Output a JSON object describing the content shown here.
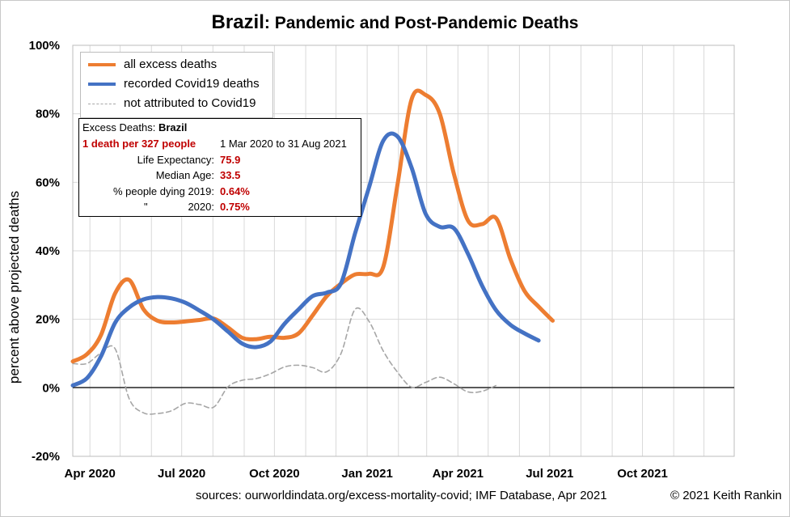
{
  "title_bold": "Brazil",
  "title_rest": ": Pandemic and Post-Pandemic Deaths",
  "footer": {
    "sources": "sources:  ourworldindata.org/excess-mortality-covid;  IMF Database, Apr 2021",
    "copyright": "© 2021 Keith Rankin"
  },
  "legend": {
    "items": [
      {
        "label": "all excess deaths",
        "color": "#ed7d31"
      },
      {
        "label": "recorded Covid19 deaths",
        "color": "#4472c4"
      },
      {
        "label": "not attributed to Covid19",
        "color": "#a6a6a6"
      }
    ]
  },
  "infobox": {
    "heading": "Excess Deaths: ",
    "heading_bold": "Brazil",
    "rate": "1 death per 327 people",
    "period": "1 Mar 2020 to 31 Aug 2021",
    "life_label": "Life Expectancy:",
    "life_value": "75.9",
    "age_label": "Median Age:",
    "age_value": "33.5",
    "dying2019_label": "% people dying 2019:",
    "dying2019_value": "0.64%",
    "ditto_mark": "\"",
    "dying2020_label": "2020:",
    "dying2020_value": "0.75%"
  },
  "chart_data": {
    "type": "line",
    "title": "Brazil: Pandemic and Post-Pandemic Deaths",
    "xlabel": "",
    "ylabel": "percent above projected deaths",
    "x_ticks": [
      "Apr 2020",
      "Jul 2020",
      "Oct 2020",
      "Jan 2021",
      "Apr 2021",
      "Jul 2021",
      "Oct 2021"
    ],
    "x_range": [
      "2020-03-15",
      "2021-12-31"
    ],
    "y_ticks": [
      "-20%",
      "0%",
      "20%",
      "40%",
      "60%",
      "80%",
      "100%"
    ],
    "ylim": [
      -20,
      100
    ],
    "grid": true,
    "legend_position": "top-left",
    "series": [
      {
        "name": "all excess deaths",
        "color": "#ed7d31",
        "points": [
          [
            "2020-03-15",
            7.7
          ],
          [
            "2020-03-29",
            9.8
          ],
          [
            "2020-04-12",
            15.4
          ],
          [
            "2020-04-26",
            27.6
          ],
          [
            "2020-05-10",
            31.5
          ],
          [
            "2020-05-24",
            23.0
          ],
          [
            "2020-06-07",
            19.6
          ],
          [
            "2020-06-21",
            19.1
          ],
          [
            "2020-07-05",
            19.4
          ],
          [
            "2020-07-19",
            19.8
          ],
          [
            "2020-08-02",
            20.2
          ],
          [
            "2020-08-16",
            17.6
          ],
          [
            "2020-08-30",
            14.6
          ],
          [
            "2020-09-13",
            14.2
          ],
          [
            "2020-09-27",
            14.9
          ],
          [
            "2020-10-11",
            14.6
          ],
          [
            "2020-10-25",
            15.9
          ],
          [
            "2020-11-08",
            21.2
          ],
          [
            "2020-11-22",
            26.8
          ],
          [
            "2020-12-06",
            30.4
          ],
          [
            "2020-12-20",
            33.1
          ],
          [
            "2021-01-03",
            33.3
          ],
          [
            "2021-01-17",
            35.4
          ],
          [
            "2021-01-31",
            59.2
          ],
          [
            "2021-02-14",
            84.2
          ],
          [
            "2021-02-28",
            85.5
          ],
          [
            "2021-03-14",
            80.0
          ],
          [
            "2021-03-28",
            62.5
          ],
          [
            "2021-04-11",
            48.8
          ],
          [
            "2021-04-25",
            47.8
          ],
          [
            "2021-05-09",
            49.5
          ],
          [
            "2021-05-23",
            37.6
          ],
          [
            "2021-06-06",
            28.3
          ],
          [
            "2021-06-20",
            23.7
          ],
          [
            "2021-07-04",
            19.6
          ]
        ]
      },
      {
        "name": "recorded Covid19 deaths",
        "color": "#4472c4",
        "points": [
          [
            "2020-03-15",
            0.7
          ],
          [
            "2020-03-29",
            2.8
          ],
          [
            "2020-04-12",
            9.2
          ],
          [
            "2020-04-26",
            19.0
          ],
          [
            "2020-05-10",
            23.5
          ],
          [
            "2020-05-24",
            25.8
          ],
          [
            "2020-06-07",
            26.5
          ],
          [
            "2020-06-21",
            26.1
          ],
          [
            "2020-07-05",
            24.8
          ],
          [
            "2020-07-19",
            22.5
          ],
          [
            "2020-08-02",
            19.9
          ],
          [
            "2020-08-16",
            16.4
          ],
          [
            "2020-08-30",
            12.9
          ],
          [
            "2020-09-13",
            11.9
          ],
          [
            "2020-09-27",
            13.5
          ],
          [
            "2020-10-11",
            18.7
          ],
          [
            "2020-10-25",
            22.9
          ],
          [
            "2020-11-08",
            26.8
          ],
          [
            "2020-11-22",
            27.8
          ],
          [
            "2020-12-06",
            30.5
          ],
          [
            "2020-12-20",
            45.1
          ],
          [
            "2021-01-03",
            58.7
          ],
          [
            "2021-01-17",
            72.2
          ],
          [
            "2021-01-31",
            73.4
          ],
          [
            "2021-02-14",
            64.3
          ],
          [
            "2021-02-28",
            50.8
          ],
          [
            "2021-03-14",
            47.0
          ],
          [
            "2021-03-28",
            46.6
          ],
          [
            "2021-04-11",
            39.1
          ],
          [
            "2021-04-25",
            29.8
          ],
          [
            "2021-05-09",
            22.6
          ],
          [
            "2021-05-23",
            18.4
          ],
          [
            "2021-06-06",
            15.9
          ],
          [
            "2021-06-20",
            13.8
          ]
        ]
      },
      {
        "name": "not attributed to Covid19",
        "color": "#a6a6a6",
        "points": [
          [
            "2020-03-15",
            7.1
          ],
          [
            "2020-03-29",
            7.1
          ],
          [
            "2020-04-12",
            10.2
          ],
          [
            "2020-04-26",
            11.4
          ],
          [
            "2020-05-10",
            -3.2
          ],
          [
            "2020-05-24",
            -7.3
          ],
          [
            "2020-06-07",
            -7.5
          ],
          [
            "2020-06-21",
            -6.7
          ],
          [
            "2020-07-05",
            -4.5
          ],
          [
            "2020-07-19",
            -4.9
          ],
          [
            "2020-08-02",
            -5.6
          ],
          [
            "2020-08-16",
            0.3
          ],
          [
            "2020-08-30",
            2.2
          ],
          [
            "2020-09-13",
            2.7
          ],
          [
            "2020-09-27",
            4.1
          ],
          [
            "2020-10-11",
            6.1
          ],
          [
            "2020-10-25",
            6.6
          ],
          [
            "2020-11-08",
            5.9
          ],
          [
            "2020-11-22",
            4.7
          ],
          [
            "2020-12-06",
            10.0
          ],
          [
            "2020-12-20",
            22.9
          ],
          [
            "2021-01-03",
            19.3
          ],
          [
            "2021-01-17",
            10.7
          ],
          [
            "2021-01-31",
            4.6
          ],
          [
            "2021-02-14",
            0.2
          ],
          [
            "2021-02-28",
            1.6
          ],
          [
            "2021-03-14",
            3.1
          ],
          [
            "2021-03-28",
            1.2
          ],
          [
            "2021-04-11",
            -1.2
          ],
          [
            "2021-04-25",
            -1.0
          ],
          [
            "2021-05-09",
            0.7
          ]
        ]
      }
    ]
  }
}
